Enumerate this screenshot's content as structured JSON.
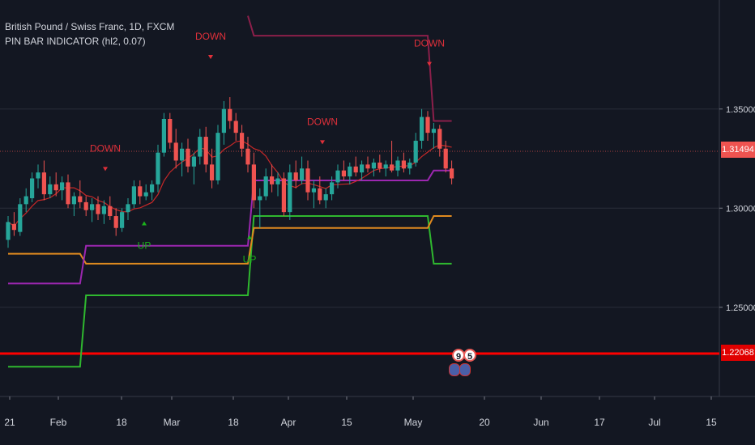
{
  "header": {
    "title": "British Pound / Swiss Franc, 1D, FXCM",
    "indicator": "PIN BAR INDICATOR (hl2, 0.07)"
  },
  "price_axis": {
    "ticks": [
      "1.35000",
      "1.30000",
      "1.25000"
    ],
    "current_price": "1.31494",
    "horizontal_level": "1.22068"
  },
  "time_axis": {
    "labels": [
      "21",
      "Feb",
      "18",
      "Mar",
      "18",
      "Apr",
      "15",
      "May",
      "20",
      "Jun",
      "17",
      "Jul",
      "15"
    ]
  },
  "events": {
    "flag_1": "9",
    "flag_2": "5"
  },
  "colors": {
    "background": "#131722",
    "up_candle": "#26a69a",
    "down_candle": "#ef5350",
    "down_label": "#e0303a",
    "up_label": "#1bb31b",
    "purple_line": "#9c27b0",
    "orange_line": "#e08a1f",
    "green_line": "#2fb82f",
    "maroon_line": "#8b1f4a",
    "ma_line": "#c62828",
    "level_line": "#ff0000"
  },
  "chart_data": {
    "type": "candlestick",
    "ylim": [
      1.205,
      1.405
    ],
    "signals": [
      {
        "label": "DOWN",
        "x": "Jan 27",
        "y": 1.3285
      },
      {
        "label": "UP",
        "x": "Feb 22",
        "y": 1.2795
      },
      {
        "label": "DOWN",
        "x": "Mar 6",
        "y": 1.385
      },
      {
        "label": "UP",
        "x": "Mar 18",
        "y": 1.2725
      },
      {
        "label": "DOWN",
        "x": "Apr 7",
        "y": 1.342
      },
      {
        "label": "DOWN",
        "x": "May 7",
        "y": 1.3815
      }
    ],
    "candles_ohlc": [
      [
        1.284,
        1.296,
        1.28,
        1.293
      ],
      [
        1.292,
        1.298,
        1.286,
        1.289
      ],
      [
        1.288,
        1.305,
        1.286,
        1.302
      ],
      [
        1.302,
        1.31,
        1.298,
        1.306
      ],
      [
        1.305,
        1.318,
        1.303,
        1.315
      ],
      [
        1.315,
        1.322,
        1.31,
        1.318
      ],
      [
        1.318,
        1.324,
        1.304,
        1.307
      ],
      [
        1.307,
        1.316,
        1.305,
        1.312
      ],
      [
        1.312,
        1.318,
        1.306,
        1.309
      ],
      [
        1.309,
        1.316,
        1.304,
        1.313
      ],
      [
        1.313,
        1.317,
        1.3,
        1.302
      ],
      [
        1.302,
        1.308,
        1.296,
        1.306
      ],
      [
        1.306,
        1.314,
        1.3,
        1.303
      ],
      [
        1.303,
        1.306,
        1.296,
        1.299
      ],
      [
        1.299,
        1.305,
        1.293,
        1.302
      ],
      [
        1.302,
        1.306,
        1.294,
        1.297
      ],
      [
        1.297,
        1.304,
        1.292,
        1.301
      ],
      [
        1.301,
        1.306,
        1.294,
        1.296
      ],
      [
        1.296,
        1.3,
        1.286,
        1.29
      ],
      [
        1.29,
        1.3,
        1.288,
        1.298
      ],
      [
        1.298,
        1.305,
        1.294,
        1.302
      ],
      [
        1.302,
        1.314,
        1.3,
        1.311
      ],
      [
        1.311,
        1.314,
        1.302,
        1.306
      ],
      [
        1.306,
        1.312,
        1.304,
        1.308
      ],
      [
        1.308,
        1.314,
        1.304,
        1.312
      ],
      [
        1.312,
        1.332,
        1.308,
        1.328
      ],
      [
        1.328,
        1.348,
        1.326,
        1.345
      ],
      [
        1.345,
        1.348,
        1.33,
        1.333
      ],
      [
        1.333,
        1.34,
        1.32,
        1.324
      ],
      [
        1.324,
        1.333,
        1.316,
        1.33
      ],
      [
        1.33,
        1.335,
        1.318,
        1.321
      ],
      [
        1.321,
        1.328,
        1.312,
        1.326
      ],
      [
        1.326,
        1.34,
        1.322,
        1.336
      ],
      [
        1.336,
        1.341,
        1.318,
        1.322
      ],
      [
        1.322,
        1.33,
        1.31,
        1.314
      ],
      [
        1.314,
        1.342,
        1.312,
        1.338
      ],
      [
        1.338,
        1.354,
        1.332,
        1.35
      ],
      [
        1.35,
        1.356,
        1.34,
        1.344
      ],
      [
        1.344,
        1.348,
        1.334,
        1.338
      ],
      [
        1.338,
        1.342,
        1.326,
        1.33
      ],
      [
        1.33,
        1.336,
        1.318,
        1.322
      ],
      [
        1.322,
        1.328,
        1.3,
        1.304
      ],
      [
        1.304,
        1.31,
        1.29,
        1.306
      ],
      [
        1.306,
        1.32,
        1.304,
        1.316
      ],
      [
        1.316,
        1.322,
        1.308,
        1.312
      ],
      [
        1.312,
        1.318,
        1.306,
        1.315
      ],
      [
        1.315,
        1.318,
        1.296,
        1.298
      ],
      [
        1.298,
        1.322,
        1.294,
        1.318
      ],
      [
        1.318,
        1.324,
        1.31,
        1.314
      ],
      [
        1.314,
        1.326,
        1.312,
        1.32
      ],
      [
        1.32,
        1.324,
        1.304,
        1.308
      ],
      [
        1.308,
        1.314,
        1.3,
        1.31
      ],
      [
        1.31,
        1.316,
        1.302,
        1.304
      ],
      [
        1.304,
        1.31,
        1.3,
        1.307
      ],
      [
        1.307,
        1.316,
        1.304,
        1.313
      ],
      [
        1.313,
        1.322,
        1.31,
        1.319
      ],
      [
        1.319,
        1.324,
        1.314,
        1.316
      ],
      [
        1.316,
        1.323,
        1.312,
        1.321
      ],
      [
        1.321,
        1.326,
        1.316,
        1.318
      ],
      [
        1.318,
        1.324,
        1.314,
        1.322
      ],
      [
        1.322,
        1.326,
        1.318,
        1.32
      ],
      [
        1.32,
        1.325,
        1.316,
        1.323
      ],
      [
        1.323,
        1.327,
        1.318,
        1.32
      ],
      [
        1.32,
        1.324,
        1.316,
        1.322
      ],
      [
        1.322,
        1.334,
        1.318,
        1.319
      ],
      [
        1.319,
        1.326,
        1.316,
        1.324
      ],
      [
        1.324,
        1.328,
        1.318,
        1.32
      ],
      [
        1.32,
        1.325,
        1.317,
        1.323
      ],
      [
        1.323,
        1.338,
        1.321,
        1.334
      ],
      [
        1.334,
        1.35,
        1.33,
        1.346
      ],
      [
        1.346,
        1.349,
        1.334,
        1.338
      ],
      [
        1.338,
        1.343,
        1.33,
        1.34
      ],
      [
        1.34,
        1.342,
        1.326,
        1.33
      ],
      [
        1.33,
        1.334,
        1.318,
        1.32
      ],
      [
        1.32,
        1.324,
        1.312,
        1.315
      ]
    ],
    "lines": {
      "purple": [
        [
          0,
          1.262
        ],
        [
          12,
          1.262
        ],
        [
          13,
          1.281
        ],
        [
          40,
          1.281
        ],
        [
          41,
          1.314
        ],
        [
          70,
          1.314
        ],
        [
          71,
          1.319
        ],
        [
          74,
          1.319
        ]
      ],
      "orange": [
        [
          0,
          1.277
        ],
        [
          12,
          1.277
        ],
        [
          13,
          1.272
        ],
        [
          40,
          1.272
        ],
        [
          41,
          1.29
        ],
        [
          70,
          1.29
        ],
        [
          71,
          1.296
        ],
        [
          74,
          1.296
        ]
      ],
      "green": [
        [
          0,
          1.22
        ],
        [
          12,
          1.22
        ],
        [
          13,
          1.256
        ],
        [
          40,
          1.256
        ],
        [
          41,
          1.296
        ],
        [
          70,
          1.296
        ],
        [
          71,
          1.272
        ],
        [
          74,
          1.272
        ]
      ],
      "maroon": [
        [
          40,
          1.397
        ],
        [
          41,
          1.387
        ],
        [
          70,
          1.387
        ],
        [
          71,
          1.344
        ],
        [
          74,
          1.344
        ]
      ]
    }
  }
}
